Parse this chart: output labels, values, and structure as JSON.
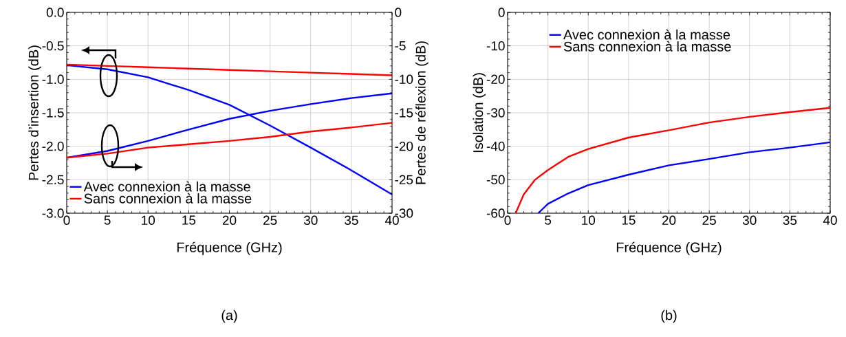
{
  "chart_data": [
    {
      "type": "line",
      "xlabel": "Fréquence (GHz)",
      "ylabel": "Pertes d’insertion (dB)",
      "y2label": "Pertes de réflexion (dB)",
      "annotations": [
        "(a)"
      ],
      "x": [
        0,
        5,
        10,
        15,
        20,
        25,
        30,
        35,
        40
      ],
      "xlim": [
        0,
        40
      ],
      "xticks": [
        0,
        5,
        10,
        15,
        20,
        25,
        30,
        35,
        40
      ],
      "ylim": [
        -3,
        0
      ],
      "yticks": [
        {
          "value": -3,
          "label": "-3.0"
        },
        -2.5,
        {
          "value": -2,
          "label": "-2.0"
        },
        -1.5,
        {
          "value": -1,
          "label": "-1.0"
        },
        -0.5,
        {
          "value": 0,
          "label": "0.0"
        }
      ],
      "y2lim": [
        -30,
        0
      ],
      "y2ticks": [
        -30,
        -25,
        -20,
        -15,
        -10,
        -5,
        0
      ],
      "grid": true,
      "legend": "bottom left",
      "series": [
        {
          "name": "Avec connexion à la masse",
          "color": "#0000ff",
          "values": [
            -0.79,
            -0.85,
            -0.97,
            -1.16,
            -1.38,
            -1.69,
            -2.02,
            -2.36,
            -2.72
          ]
        },
        {
          "name": "Sans connexion à la masse",
          "color": "#ff0000",
          "values": [
            -0.78,
            -0.8,
            -0.82,
            -0.84,
            -0.86,
            -0.88,
            -0.9,
            -0.92,
            -0.94
          ]
        },
        {
          "color": "#0000ff",
          "axis": "y2",
          "values": [
            -21.7,
            -20.7,
            -19.2,
            -17.5,
            -15.9,
            -14.7,
            -13.7,
            -12.8,
            -12.1
          ]
        },
        {
          "color": "#ff0000",
          "axis": "y2",
          "values": [
            -21.7,
            -21.1,
            -20.2,
            -19.7,
            -19.2,
            -18.6,
            -17.8,
            -17.2,
            -16.5
          ]
        }
      ]
    },
    {
      "type": "line",
      "xlabel": "Fréquence (GHz)",
      "ylabel": "Isolation (dB)",
      "annotations": [
        "(b)"
      ],
      "xlim": [
        0,
        40
      ],
      "xticks": [
        0,
        5,
        10,
        15,
        20,
        25,
        30,
        35,
        40
      ],
      "ylim": [
        -60,
        0
      ],
      "yticks": [
        -60,
        -50,
        -40,
        -30,
        -20,
        -10,
        0
      ],
      "grid": true,
      "legend": "top left",
      "series": [
        {
          "name": "Avec connexion à la masse",
          "color": "#0000ff",
          "x": [
            3.8,
            5,
            7.5,
            10,
            15,
            20,
            25,
            30,
            35,
            40
          ],
          "values": [
            -60,
            -57.2,
            -54.1,
            -51.6,
            -48.5,
            -45.7,
            -43.8,
            -41.8,
            -40.4,
            -38.8
          ]
        },
        {
          "name": "Sans connexion à la masse",
          "color": "#ff0000",
          "x": [
            1,
            2,
            3.4,
            5,
            7.5,
            10,
            15,
            20,
            25,
            30,
            35,
            40
          ],
          "values": [
            -60,
            -54.4,
            -50,
            -47.1,
            -43.2,
            -40.8,
            -37.4,
            -35.2,
            -32.9,
            -31.2,
            -29.8,
            -28.5
          ]
        }
      ]
    }
  ]
}
